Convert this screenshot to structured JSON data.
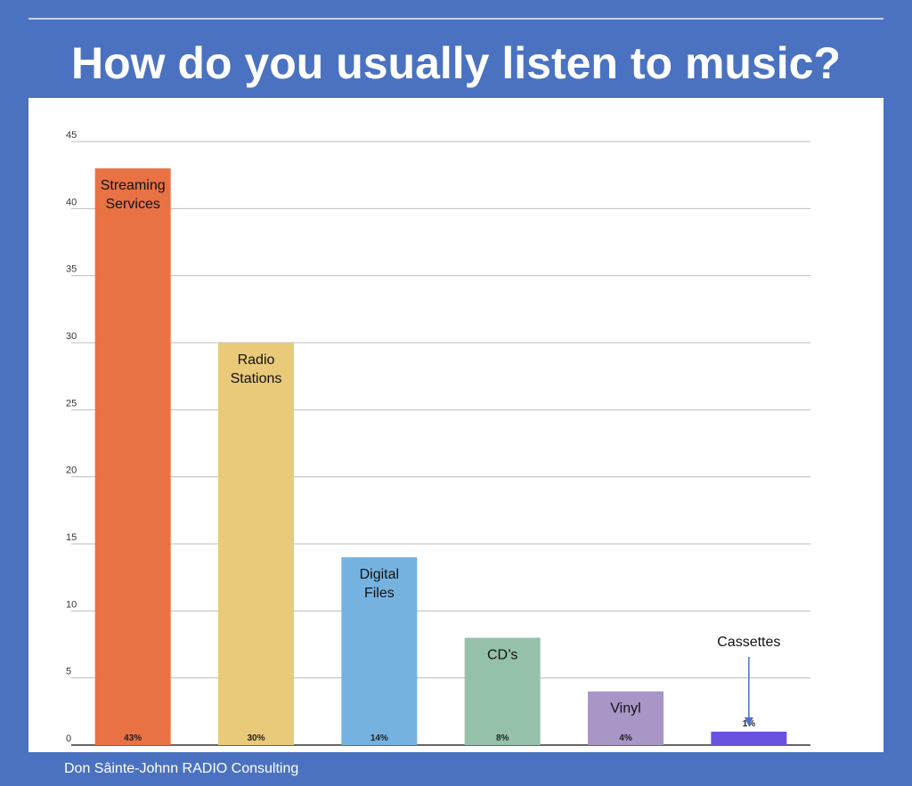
{
  "title": "How do you usually listen to music?",
  "footer": "Don Sâinte-Johnn RADIO Consulting",
  "chart_data": {
    "type": "bar",
    "title": "How do you usually listen to music?",
    "xlabel": "",
    "ylabel": "",
    "ylim": [
      0,
      45
    ],
    "yticks": [
      0,
      5,
      10,
      15,
      20,
      25,
      30,
      35,
      40,
      45
    ],
    "grid": true,
    "categories": [
      "Streaming Services",
      "Radio Stations",
      "Digital Files",
      "CD’s",
      "Vinyl",
      "Cassettes"
    ],
    "category_label_lines": [
      [
        "Streaming",
        "Services"
      ],
      [
        "Radio",
        "Stations"
      ],
      [
        "Digital",
        "Files"
      ],
      [
        "CD’s"
      ],
      [
        "Vinyl"
      ],
      [
        "Cassettes"
      ]
    ],
    "values": [
      43,
      30,
      14,
      8,
      4,
      1
    ],
    "data_labels": [
      "43%",
      "30%",
      "14%",
      "8%",
      "4%",
      "1%"
    ],
    "colors": [
      "#e97245",
      "#e9ca79",
      "#76b2e0",
      "#95c1aa",
      "#a796c6",
      "#6a52e0"
    ],
    "annotation_arrow_color": "#4a72c0"
  }
}
